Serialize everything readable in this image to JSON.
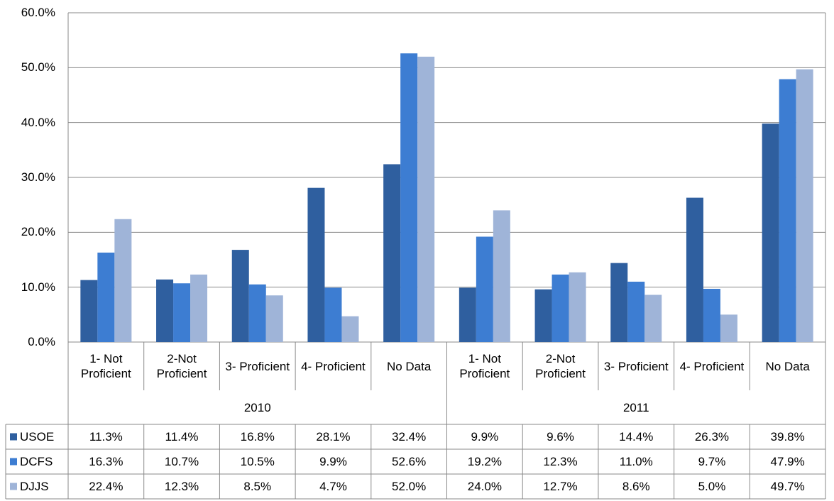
{
  "chart_data": {
    "type": "bar",
    "categories": [
      "1- Not Proficient",
      "2-Not Proficient",
      "3- Proficient",
      "4- Proficient",
      "No Data",
      "1- Not Proficient",
      "2-Not Proficient",
      "3- Proficient",
      "4- Proficient",
      "No Data"
    ],
    "groups": [
      "2010",
      "2011"
    ],
    "series": [
      {
        "name": "USOE",
        "color": "#2f5f9f",
        "values": [
          11.3,
          11.4,
          16.8,
          28.1,
          32.4,
          9.9,
          9.6,
          14.4,
          26.3,
          39.8
        ],
        "value_labels": [
          "11.3%",
          "11.4%",
          "16.8%",
          "28.1%",
          "32.4%",
          "9.9%",
          "9.6%",
          "14.4%",
          "26.3%",
          "39.8%"
        ]
      },
      {
        "name": "DCFS",
        "color": "#3d7dd2",
        "values": [
          16.3,
          10.7,
          10.5,
          9.9,
          52.6,
          19.2,
          12.3,
          11.0,
          9.7,
          47.9
        ],
        "value_labels": [
          "16.3%",
          "10.7%",
          "10.5%",
          "9.9%",
          "52.6%",
          "19.2%",
          "12.3%",
          "11.0%",
          "9.7%",
          "47.9%"
        ]
      },
      {
        "name": "DJJS",
        "color": "#9fb4d8",
        "values": [
          22.4,
          12.3,
          8.5,
          4.7,
          52.0,
          24.0,
          12.7,
          8.6,
          5.0,
          49.7
        ],
        "value_labels": [
          "22.4%",
          "12.3%",
          "8.5%",
          "4.7%",
          "52.0%",
          "24.0%",
          "12.7%",
          "8.6%",
          "5.0%",
          "49.7%"
        ]
      }
    ],
    "ylim": [
      0,
      60
    ],
    "yticks": [
      {
        "value": 0,
        "label": "0.0%"
      },
      {
        "value": 10,
        "label": "10.0%"
      },
      {
        "value": 20,
        "label": "20.0%"
      },
      {
        "value": 30,
        "label": "30.0%"
      },
      {
        "value": 40,
        "label": "40.0%"
      },
      {
        "value": 50,
        "label": "50.0%"
      },
      {
        "value": 60,
        "label": "60.0%"
      }
    ],
    "grid": true
  }
}
